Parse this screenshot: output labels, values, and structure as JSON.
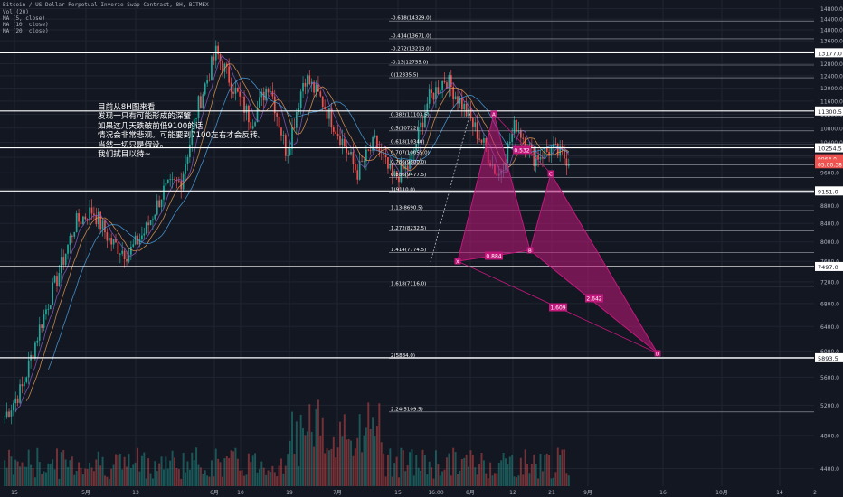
{
  "header": {
    "title": "Bitcoin / US Dollar Perpetual Inverse Swap Contract, 8H, BITMEX",
    "indicators": [
      "Vol (20)",
      "MA (5, close)",
      "MA (10, close)",
      "MA (20, close)"
    ]
  },
  "annotation": [
    "目前从8H图来看",
    "发现一只有可能形成的深蟹",
    "如果这几天跌破前低9100的话",
    "情况会非常悲观。可能要到7100左右才会反转。",
    "当然一切只是假设。",
    "我们拭目以待~"
  ],
  "colors": {
    "background": "#131722",
    "up_candle": "#26a69a",
    "down_candle": "#ef5350",
    "pattern": "#c2187b",
    "pattern_fill": "#c2187b",
    "grid": "#1f2430",
    "text": "#b2b5be",
    "level_line": "#ffffff",
    "price_tag": "#ef5350",
    "ma5": "#8e5ec4",
    "ma10": "#e69a52",
    "ma20": "#4aa3df"
  },
  "chart_data": {
    "type": "candlestick",
    "symbol": "Bitcoin / US Dollar Perpetual Inverse Swap Contract",
    "interval": "8H",
    "exchange": "BITMEX",
    "y_scale": "log",
    "ylim": [
      4200,
      15000
    ],
    "y_ticks": [
      4400,
      4800,
      5200,
      5600,
      6000,
      6400,
      6800,
      7200,
      7600,
      8000,
      8400,
      8800,
      9200,
      9600,
      10000,
      10400,
      10800,
      11200,
      11600,
      12000,
      12400,
      12800,
      13200,
      13600,
      14000,
      14400,
      14800
    ],
    "x_ticks": [
      "15",
      "5月",
      "13",
      "6月",
      "10",
      "19",
      "7月",
      "15",
      "16:00",
      "8月",
      "12",
      "21",
      "9月",
      "16",
      "10月",
      "14",
      "2"
    ],
    "price_series": [
      [
        "15",
        5050
      ],
      [
        "5月",
        5450
      ],
      [
        "13",
        6400
      ],
      [
        "13",
        7300
      ],
      [
        "6月",
        8400
      ],
      [
        "6月",
        8700
      ],
      [
        "6月",
        8000
      ],
      [
        "10",
        7750
      ],
      [
        "10",
        8250
      ],
      [
        "10",
        9150
      ],
      [
        "19",
        9400
      ],
      [
        "19",
        11500
      ],
      [
        "19",
        13200
      ],
      [
        "7月",
        12000
      ],
      [
        "7月",
        11000
      ],
      [
        "7月",
        12200
      ],
      [
        "7月",
        10100
      ],
      [
        "15",
        12400
      ],
      [
        "15",
        11600
      ],
      [
        "15",
        10600
      ],
      [
        "15",
        9600
      ],
      [
        "16:00",
        10400
      ],
      [
        "16:00",
        9450
      ],
      [
        "8月",
        9800
      ],
      [
        "8月",
        11600
      ],
      [
        "8月",
        12330
      ],
      [
        "12",
        11450
      ],
      [
        "12",
        10500
      ],
      [
        "12",
        9500
      ],
      [
        "21",
        10950
      ],
      [
        "21",
        10000
      ],
      [
        "21",
        10200
      ],
      [
        "21",
        9950
      ]
    ],
    "volume_series": [],
    "horizontal_levels": [
      13177.0,
      11300.5,
      10254.5,
      9151.0,
      7497.0,
      5893.5
    ],
    "fib_levels": [
      {
        "label": "-0.618(14329.0)",
        "value": 14329.0
      },
      {
        "label": "-0.414(13671.0)",
        "value": 13671.0
      },
      {
        "label": "-0.272(13213.0)",
        "value": 13213.0
      },
      {
        "label": "-0.13(12755.0)",
        "value": 12755.0
      },
      {
        "label": "0(12335.5)",
        "value": 12335.5
      },
      {
        "label": "0.382(11103.5)",
        "value": 11103.5
      },
      {
        "label": "0.5(10722)",
        "value": 10722
      },
      {
        "label": "0.618(10340)",
        "value": 10340
      },
      {
        "label": "0.707(10055.0)",
        "value": 10055.0
      },
      {
        "label": "0.786(9800.0)",
        "value": 9800.0
      },
      {
        "label": "0.886(9477.5)",
        "value": 9477.5
      },
      {
        "label": "1(9110.0)",
        "value": 9110.0
      },
      {
        "label": "1.13(8690.5)",
        "value": 8690.5
      },
      {
        "label": "1.272(8232.5)",
        "value": 8232.5
      },
      {
        "label": "1.414(7774.5)",
        "value": 7774.5
      },
      {
        "label": "1.618(7116.0)",
        "value": 7116.0
      },
      {
        "label": "2(5884.0)",
        "value": 5884.0
      },
      {
        "label": "2.24(5109.5)",
        "value": 5109.5
      }
    ],
    "pattern": {
      "points": [
        {
          "label": "X",
          "x": "8月",
          "y": 9110
        },
        {
          "label": "A",
          "x": "8月",
          "y": 12335
        },
        {
          "label": "B",
          "x": "12",
          "y": 9480
        },
        {
          "label": "C",
          "x": "21",
          "y": 11100
        },
        {
          "label": "D",
          "x": "16",
          "y": 7116
        }
      ],
      "ratios": [
        "0.884",
        "0.532",
        "2.642",
        "1.609"
      ]
    },
    "price_tags": [
      {
        "label": "9963.0",
        "value": 9963.0
      },
      {
        "label": "05:00:38",
        "value": 9830.0
      }
    ]
  }
}
